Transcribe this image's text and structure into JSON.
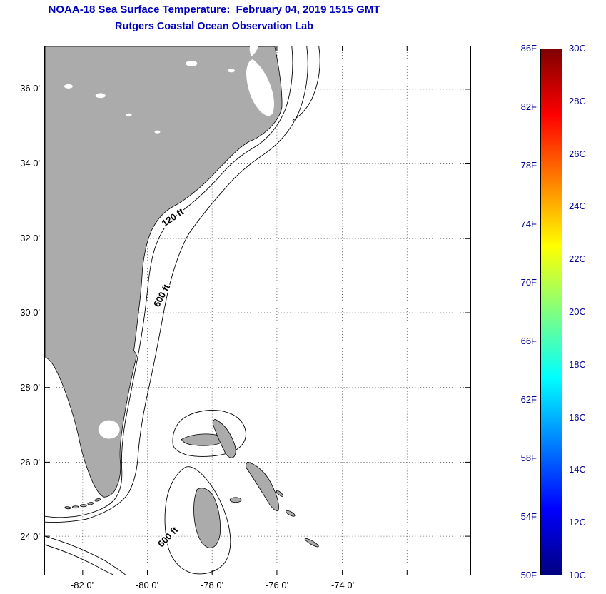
{
  "title": {
    "line1": "NOAA-18 Sea Surface Temperature:  February 04, 2019 1515 GMT",
    "line2": "Rutgers Coastal Ocean Observation Lab"
  },
  "map": {
    "y_ticks": [
      "36 0'",
      "34 0'",
      "32 0'",
      "30 0'",
      "28 0'",
      "26 0'",
      "24 0'"
    ],
    "x_ticks": [
      "-82 0'",
      "-80 0'",
      "-78 0'",
      "-76 0'",
      "-74 0'"
    ],
    "contour_labels": [
      "120 ft",
      "600 ft",
      "600 ft"
    ]
  },
  "colorbar": {
    "f_labels": [
      "86F",
      "82F",
      "78F",
      "74F",
      "70F",
      "66F",
      "62F",
      "58F",
      "54F",
      "50F"
    ],
    "c_labels": [
      "30C",
      "28C",
      "26C",
      "24C",
      "22C",
      "20C",
      "18C",
      "16C",
      "14C",
      "12C",
      "10C"
    ],
    "gradient": [
      "#800000",
      "#ff0000",
      "#ff8000",
      "#ffff00",
      "#80ff80",
      "#00ffff",
      "#0080ff",
      "#0000ff",
      "#000080"
    ],
    "range_f": [
      50,
      86
    ],
    "range_c": [
      10,
      30
    ]
  },
  "colors": {
    "title": "#0000bb",
    "land": "#ababab",
    "colorbar_label": "#000090",
    "axis_label": "#000000"
  }
}
